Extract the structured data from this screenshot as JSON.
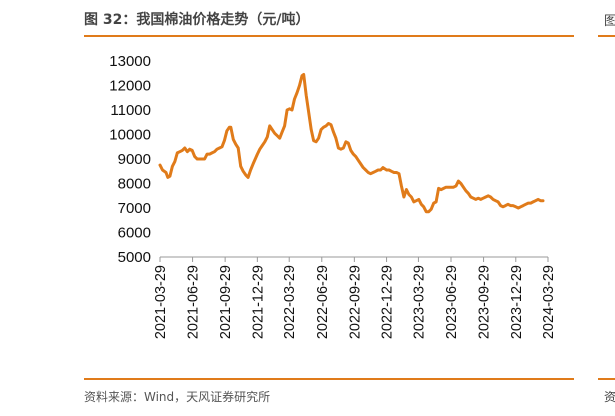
{
  "figure": {
    "title": "图 32：我国棉油价格走势（元/吨）",
    "source": "资料来源：Wind，天风证券研究所",
    "edge_title_fragment": "图",
    "edge_source_fragment": "资"
  },
  "colors": {
    "series": "#e07b1a",
    "rule": "#e07b1a",
    "axis": "#999999"
  },
  "chart_data": {
    "type": "line",
    "title": "",
    "xlabel": "",
    "ylabel": "",
    "ylim": [
      5000,
      13000
    ],
    "yticks": [
      "5000",
      "6000",
      "7000",
      "8000",
      "9000",
      "10000",
      "11000",
      "12000",
      "13000"
    ],
    "xlim": [
      "2021-03-29",
      "2024-03-29"
    ],
    "xticks": [
      "2021-03-29",
      "2021-06-29",
      "2021-09-29",
      "2021-12-29",
      "2022-03-29",
      "2022-06-29",
      "2022-09-29",
      "2022-12-29",
      "2023-03-29",
      "2023-06-29",
      "2023-09-29",
      "2023-12-29",
      "2024-03-29"
    ],
    "grid": false,
    "legend": "none",
    "series": [
      {
        "values": [
          [
            "2021-03-29",
            8750
          ],
          [
            "2021-04-05",
            8550
          ],
          [
            "2021-04-15",
            8450
          ],
          [
            "2021-04-20",
            8250
          ],
          [
            "2021-04-26",
            8300
          ],
          [
            "2021-05-03",
            8700
          ],
          [
            "2021-05-10",
            8900
          ],
          [
            "2021-05-17",
            9250
          ],
          [
            "2021-05-24",
            9300
          ],
          [
            "2021-05-31",
            9350
          ],
          [
            "2021-06-07",
            9450
          ],
          [
            "2021-06-14",
            9300
          ],
          [
            "2021-06-21",
            9400
          ],
          [
            "2021-06-28",
            9350
          ],
          [
            "2021-07-05",
            9100
          ],
          [
            "2021-07-12",
            9000
          ],
          [
            "2021-07-19",
            9000
          ],
          [
            "2021-07-26",
            9000
          ],
          [
            "2021-08-02",
            9000
          ],
          [
            "2021-08-09",
            9200
          ],
          [
            "2021-08-16",
            9200
          ],
          [
            "2021-08-23",
            9250
          ],
          [
            "2021-08-30",
            9300
          ],
          [
            "2021-09-06",
            9400
          ],
          [
            "2021-09-13",
            9450
          ],
          [
            "2021-09-20",
            9500
          ],
          [
            "2021-09-27",
            9750
          ],
          [
            "2021-10-04",
            10150
          ],
          [
            "2021-10-11",
            10300
          ],
          [
            "2021-10-15",
            10300
          ],
          [
            "2021-10-22",
            9800
          ],
          [
            "2021-10-29",
            9600
          ],
          [
            "2021-11-05",
            9450
          ],
          [
            "2021-11-12",
            8700
          ],
          [
            "2021-11-19",
            8500
          ],
          [
            "2021-11-26",
            8350
          ],
          [
            "2021-12-03",
            8250
          ],
          [
            "2021-12-10",
            8550
          ],
          [
            "2021-12-17",
            8800
          ],
          [
            "2021-12-29",
            9200
          ],
          [
            "2022-01-05",
            9400
          ],
          [
            "2022-01-12",
            9550
          ],
          [
            "2022-01-19",
            9700
          ],
          [
            "2022-01-26",
            9900
          ],
          [
            "2022-02-02",
            10350
          ],
          [
            "2022-02-09",
            10200
          ],
          [
            "2022-02-16",
            10050
          ],
          [
            "2022-02-23",
            9950
          ],
          [
            "2022-03-02",
            9850
          ],
          [
            "2022-03-09",
            10100
          ],
          [
            "2022-03-16",
            10350
          ],
          [
            "2022-03-23",
            11000
          ],
          [
            "2022-03-30",
            11050
          ],
          [
            "2022-04-06",
            11000
          ],
          [
            "2022-04-13",
            11450
          ],
          [
            "2022-04-20",
            11700
          ],
          [
            "2022-04-27",
            12000
          ],
          [
            "2022-05-04",
            12400
          ],
          [
            "2022-05-09",
            12450
          ],
          [
            "2022-05-16",
            11600
          ],
          [
            "2022-05-23",
            10900
          ],
          [
            "2022-05-30",
            10200
          ],
          [
            "2022-06-06",
            9750
          ],
          [
            "2022-06-13",
            9700
          ],
          [
            "2022-06-20",
            9850
          ],
          [
            "2022-06-27",
            10200
          ],
          [
            "2022-07-04",
            10300
          ],
          [
            "2022-07-11",
            10350
          ],
          [
            "2022-07-18",
            10450
          ],
          [
            "2022-07-25",
            10400
          ],
          [
            "2022-08-01",
            10100
          ],
          [
            "2022-08-08",
            9850
          ],
          [
            "2022-08-15",
            9450
          ],
          [
            "2022-08-22",
            9400
          ],
          [
            "2022-08-29",
            9450
          ],
          [
            "2022-09-05",
            9700
          ],
          [
            "2022-09-12",
            9650
          ],
          [
            "2022-09-19",
            9350
          ],
          [
            "2022-09-26",
            9200
          ],
          [
            "2022-10-03",
            9100
          ],
          [
            "2022-10-10",
            8950
          ],
          [
            "2022-10-17",
            8800
          ],
          [
            "2022-10-24",
            8650
          ],
          [
            "2022-10-31",
            8550
          ],
          [
            "2022-11-07",
            8450
          ],
          [
            "2022-11-14",
            8400
          ],
          [
            "2022-11-21",
            8450
          ],
          [
            "2022-11-28",
            8500
          ],
          [
            "2022-12-05",
            8550
          ],
          [
            "2022-12-12",
            8550
          ],
          [
            "2022-12-19",
            8650
          ],
          [
            "2022-12-29",
            8550
          ],
          [
            "2023-01-05",
            8550
          ],
          [
            "2023-01-12",
            8500
          ],
          [
            "2023-01-19",
            8450
          ],
          [
            "2023-01-26",
            8450
          ],
          [
            "2023-02-02",
            8400
          ],
          [
            "2023-02-09",
            7900
          ],
          [
            "2023-02-16",
            7450
          ],
          [
            "2023-02-23",
            7750
          ],
          [
            "2023-03-02",
            7550
          ],
          [
            "2023-03-09",
            7450
          ],
          [
            "2023-03-16",
            7250
          ],
          [
            "2023-03-23",
            7300
          ],
          [
            "2023-03-30",
            7350
          ],
          [
            "2023-04-06",
            7150
          ],
          [
            "2023-04-13",
            7050
          ],
          [
            "2023-04-20",
            6850
          ],
          [
            "2023-04-27",
            6850
          ],
          [
            "2023-05-04",
            6950
          ],
          [
            "2023-05-11",
            7200
          ],
          [
            "2023-05-18",
            7250
          ],
          [
            "2023-05-25",
            7800
          ],
          [
            "2023-06-01",
            7750
          ],
          [
            "2023-06-08",
            7800
          ],
          [
            "2023-06-15",
            7850
          ],
          [
            "2023-06-22",
            7850
          ],
          [
            "2023-06-29",
            7850
          ],
          [
            "2023-07-06",
            7850
          ],
          [
            "2023-07-13",
            7900
          ],
          [
            "2023-07-20",
            8100
          ],
          [
            "2023-07-27",
            8000
          ],
          [
            "2023-08-03",
            7850
          ],
          [
            "2023-08-10",
            7700
          ],
          [
            "2023-08-17",
            7600
          ],
          [
            "2023-08-24",
            7450
          ],
          [
            "2023-08-31",
            7400
          ],
          [
            "2023-09-07",
            7350
          ],
          [
            "2023-09-14",
            7400
          ],
          [
            "2023-09-21",
            7350
          ],
          [
            "2023-09-28",
            7400
          ],
          [
            "2023-10-05",
            7450
          ],
          [
            "2023-10-12",
            7500
          ],
          [
            "2023-10-19",
            7450
          ],
          [
            "2023-10-26",
            7350
          ],
          [
            "2023-11-02",
            7300
          ],
          [
            "2023-11-09",
            7250
          ],
          [
            "2023-11-16",
            7100
          ],
          [
            "2023-11-23",
            7050
          ],
          [
            "2023-11-30",
            7100
          ],
          [
            "2023-12-07",
            7150
          ],
          [
            "2023-12-14",
            7100
          ],
          [
            "2023-12-21",
            7100
          ],
          [
            "2023-12-29",
            7050
          ],
          [
            "2024-01-05",
            7000
          ],
          [
            "2024-01-12",
            7050
          ],
          [
            "2024-01-19",
            7100
          ],
          [
            "2024-01-26",
            7150
          ],
          [
            "2024-02-02",
            7200
          ],
          [
            "2024-02-09",
            7200
          ],
          [
            "2024-02-16",
            7250
          ],
          [
            "2024-02-23",
            7300
          ],
          [
            "2024-03-01",
            7350
          ],
          [
            "2024-03-08",
            7300
          ],
          [
            "2024-03-15",
            7300
          ]
        ]
      }
    ]
  }
}
